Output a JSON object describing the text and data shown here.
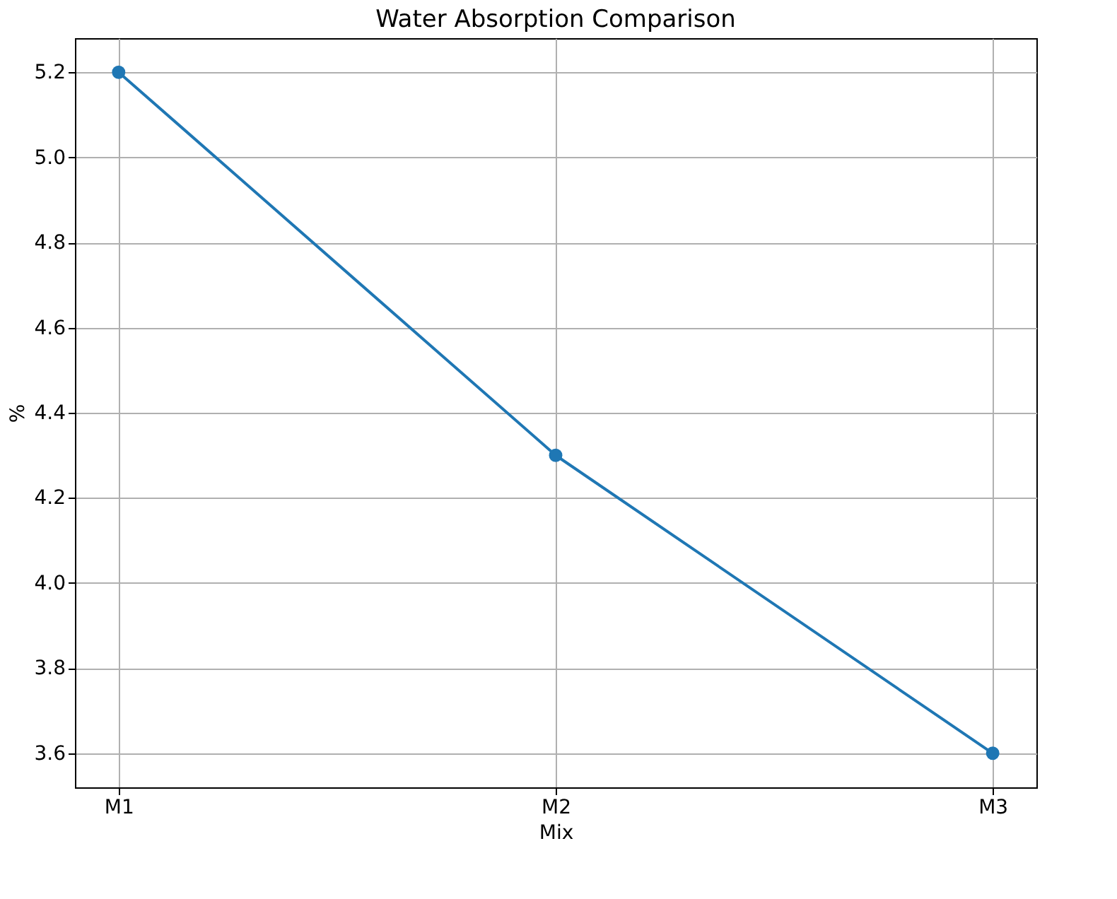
{
  "chart_data": {
    "type": "line",
    "title": "Water Absorption Comparison",
    "xlabel": "Mix",
    "ylabel": "%",
    "categories": [
      "M1",
      "M2",
      "M3"
    ],
    "series": [
      {
        "color": "#1f77b4",
        "values": [
          5.2,
          4.3,
          3.6
        ]
      }
    ],
    "ylim": [
      3.52,
      5.28
    ],
    "yticks": [
      {
        "value": 3.6,
        "label": "3.6"
      },
      {
        "value": 3.8,
        "label": "3.8"
      },
      {
        "value": 4.0,
        "label": "4.0"
      },
      {
        "value": 4.2,
        "label": "4.2"
      },
      {
        "value": 4.4,
        "label": "4.4"
      },
      {
        "value": 4.6,
        "label": "4.6"
      },
      {
        "value": 4.8,
        "label": "4.8"
      },
      {
        "value": 5.0,
        "label": "5.0"
      },
      {
        "value": 5.2,
        "label": "5.2"
      }
    ],
    "grid": true,
    "marker": "circle",
    "line_style": "solid"
  }
}
